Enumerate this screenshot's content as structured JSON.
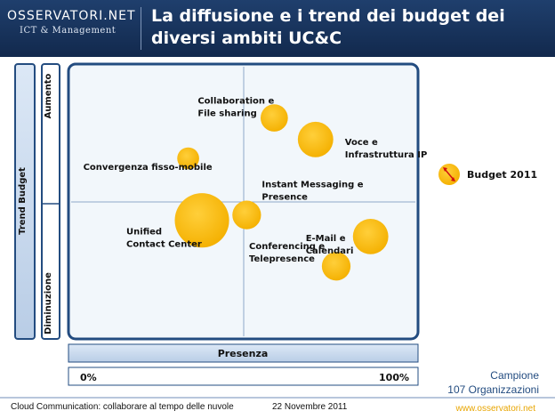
{
  "header": {
    "logo_main": "OSSERVATORI.NET",
    "logo_sub": "ICT & Management",
    "title_line1": "La diffusione e i trend dei budget dei",
    "title_line2": "diversi ambiti UC&C"
  },
  "chart_data": {
    "type": "scatter",
    "x_axis_label": "Presenza",
    "x_min_label": "0%",
    "x_max_label": "100%",
    "y_axis_label": "Trend Budget",
    "y_up_label": "Aumento",
    "y_down_label": "Diminuzione",
    "points": [
      {
        "label_lines": [
          "Collaboration e",
          "File sharing"
        ],
        "x": 0.59,
        "y": 0.81,
        "budget": 0.22
      },
      {
        "label_lines": [
          "Voce e",
          "Infrastruttura IP"
        ],
        "x": 0.71,
        "y": 0.73,
        "budget": 0.34
      },
      {
        "label_lines": [
          "Convergenza fisso-mobile"
        ],
        "x": 0.34,
        "y": 0.66,
        "budget": 0.14
      },
      {
        "label_lines": [
          "Instant Messaging e",
          "Presence"
        ],
        "x": 0.51,
        "y": 0.45,
        "budget": 0.24
      },
      {
        "label_lines": [
          "Unified",
          "Contact Center"
        ],
        "x": 0.38,
        "y": 0.43,
        "budget": 0.62
      },
      {
        "label_lines": [
          "E-Mail e",
          "Calendari"
        ],
        "x": 0.87,
        "y": 0.37,
        "budget": 0.34
      },
      {
        "label_lines": [
          "Conferencing e",
          "Telepresence"
        ],
        "x": 0.77,
        "y": 0.26,
        "budget": 0.24
      }
    ],
    "legend": {
      "label": "Budget 2011",
      "position": "right"
    }
  },
  "footer": {
    "left": "Cloud Communication: collaborare al tempo delle nuvole",
    "date": "22 Novembre 2011",
    "sample_label": "Campione",
    "sample_value": "107 Organizzazioni",
    "site": "www.osservatori.net"
  },
  "colors": {
    "bubble": "#f8b800",
    "frame": "#234c80",
    "header": "#1f3f6d"
  }
}
